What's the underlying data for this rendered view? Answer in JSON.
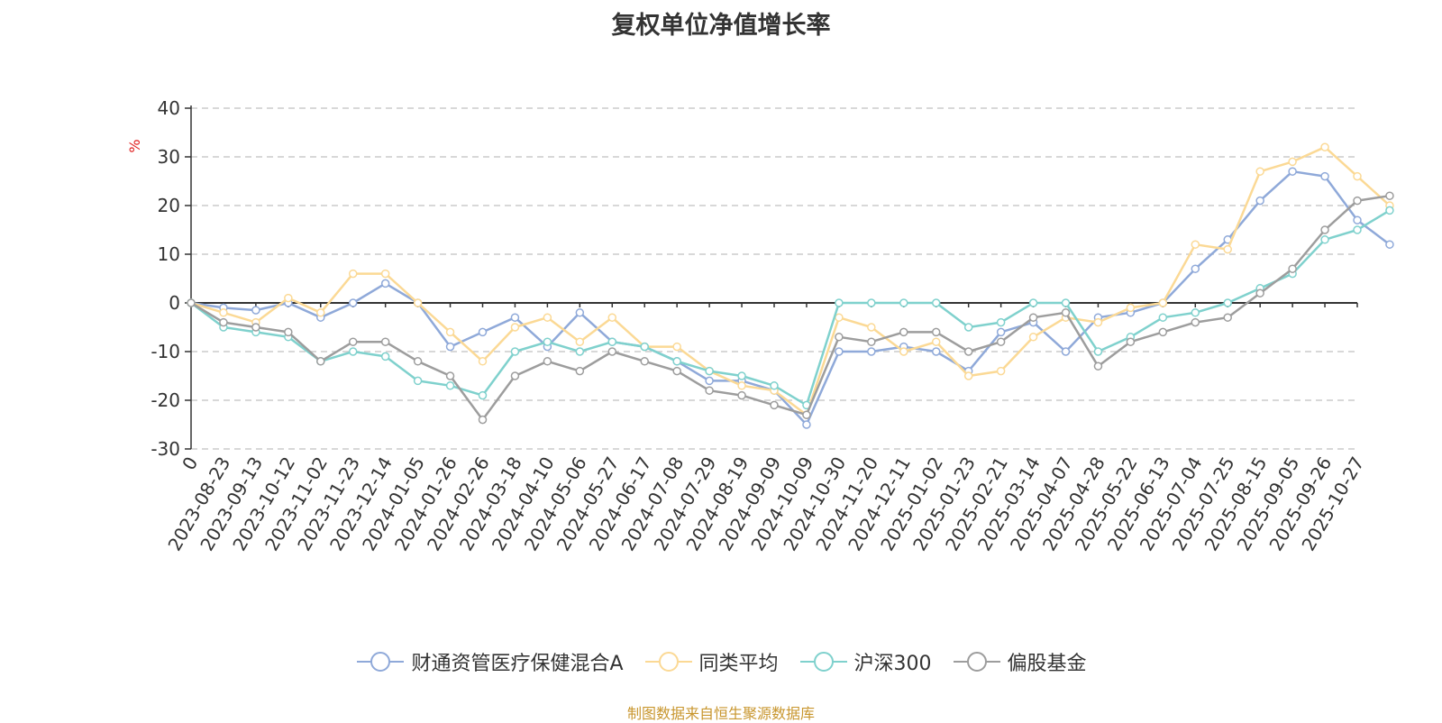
{
  "chart_data": {
    "type": "line",
    "title": "复权单位净值增长率",
    "ylabel": "%",
    "ylim": [
      -30,
      40
    ],
    "yticks": [
      -30,
      -20,
      -10,
      0,
      10,
      20,
      30,
      40
    ],
    "x_start_label": "0",
    "x_tick_labels": [
      "0",
      "2023-08-23",
      "2023-09-13",
      "2023-10-12",
      "2023-11-02",
      "2023-11-23",
      "2023-12-14",
      "2024-01-05",
      "2024-01-26",
      "2024-02-26",
      "2024-03-18",
      "2024-04-10",
      "2024-05-06",
      "2024-05-27",
      "2024-06-17",
      "2024-07-08",
      "2024-07-29",
      "2024-08-19",
      "2024-09-09",
      "2024-10-09",
      "2024-10-30",
      "2024-11-20",
      "2024-12-11",
      "2025-01-02",
      "2025-01-23",
      "2025-02-21",
      "2025-03-14",
      "2025-04-07",
      "2025-04-28",
      "2025-05-22",
      "2025-06-13",
      "2025-07-04",
      "2025-07-25",
      "2025-08-15",
      "2025-09-05",
      "2025-09-26",
      "2025-10-27"
    ],
    "grid": true,
    "legend_position": "bottom",
    "series": [
      {
        "name": "财通资管医疗保健混合A",
        "color": "#8fa9d9",
        "values": [
          0,
          -1,
          -1.5,
          0,
          -3,
          0,
          4,
          0,
          -9,
          -6,
          -3,
          -9,
          -2,
          -8,
          -9,
          -12,
          -16,
          -16,
          -18,
          -25,
          -10,
          -10,
          -9,
          -10,
          -14,
          -6,
          -4,
          -10,
          -3,
          -2,
          0,
          7,
          13,
          21,
          27,
          26,
          17,
          12
        ]
      },
      {
        "name": "同类平均",
        "color": "#fbd995",
        "values": [
          0,
          -2,
          -4,
          1,
          -2,
          6,
          6,
          0,
          -6,
          -12,
          -5,
          -3,
          -8,
          -3,
          -9,
          -9,
          -14,
          -17,
          -18,
          -23,
          -3,
          -5,
          -10,
          -8,
          -15,
          -14,
          -7,
          -3,
          -4,
          -1,
          0,
          12,
          11,
          27,
          29,
          32,
          26,
          20
        ]
      },
      {
        "name": "沪深300",
        "color": "#7fd1cd",
        "values": [
          0,
          -5,
          -6,
          -7,
          -12,
          -10,
          -11,
          -16,
          -17,
          -19,
          -10,
          -8,
          -10,
          -8,
          -9,
          -12,
          -14,
          -15,
          -17,
          -21,
          0,
          0,
          0,
          0,
          -5,
          -4,
          0,
          0,
          -10,
          -7,
          -3,
          -2,
          0,
          3,
          6,
          13,
          15,
          19
        ]
      },
      {
        "name": "偏股基金",
        "color": "#9d9d9d",
        "values": [
          0,
          -4,
          -5,
          -6,
          -12,
          -8,
          -8,
          -12,
          -15,
          -24,
          -15,
          -12,
          -14,
          -10,
          -12,
          -14,
          -18,
          -19,
          -21,
          -23,
          -7,
          -8,
          -6,
          -6,
          -10,
          -8,
          -3,
          -2,
          -13,
          -8,
          -6,
          -4,
          -3,
          2,
          7,
          15,
          21,
          22
        ]
      }
    ]
  },
  "source": "制图数据来自恒生聚源数据库"
}
